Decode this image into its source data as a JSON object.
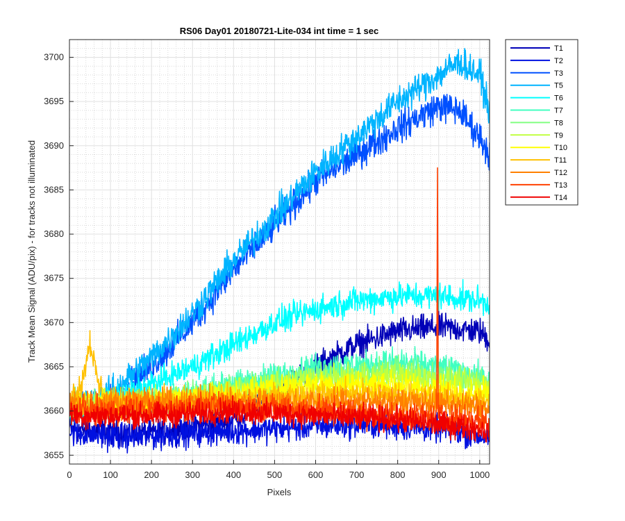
{
  "chart_data": {
    "type": "line",
    "title": "RS06 Day01 20180721-Lite-034 int time = 1 sec",
    "xlabel": "Pixels",
    "ylabel": "Track Mean Signal (ADU/pix) - for tracks not illuminated",
    "xlim": [
      0,
      1024
    ],
    "ylim": [
      3654,
      3702
    ],
    "x_ticks": [
      0,
      100,
      200,
      300,
      400,
      500,
      600,
      700,
      800,
      900,
      1000
    ],
    "y_ticks": [
      3655,
      3660,
      3665,
      3670,
      3675,
      3680,
      3685,
      3690,
      3695,
      3700
    ],
    "grid": "major and minor",
    "legend_position": "outside-top-right",
    "series": [
      {
        "name": "T1",
        "color": "#0000b8",
        "noise": 1.3,
        "anchors": [
          [
            0,
            3658
          ],
          [
            200,
            3657.5
          ],
          [
            400,
            3659
          ],
          [
            500,
            3662
          ],
          [
            600,
            3665
          ],
          [
            700,
            3667.5
          ],
          [
            800,
            3669
          ],
          [
            900,
            3669.5
          ],
          [
            1000,
            3669
          ],
          [
            1024,
            3668
          ]
        ]
      },
      {
        "name": "T2",
        "color": "#0010e0",
        "noise": 1.3,
        "anchors": [
          [
            0,
            3657.5
          ],
          [
            150,
            3657
          ],
          [
            300,
            3657.5
          ],
          [
            500,
            3658
          ],
          [
            700,
            3658.5
          ],
          [
            900,
            3658
          ],
          [
            1024,
            3657
          ]
        ]
      },
      {
        "name": "T3",
        "color": "#0050ff",
        "noise": 1.5,
        "anchors": [
          [
            0,
            3660
          ],
          [
            100,
            3661
          ],
          [
            200,
            3665
          ],
          [
            300,
            3670
          ],
          [
            400,
            3676
          ],
          [
            500,
            3681
          ],
          [
            600,
            3686
          ],
          [
            700,
            3689
          ],
          [
            800,
            3692
          ],
          [
            900,
            3694.5
          ],
          [
            950,
            3694
          ],
          [
            1000,
            3691
          ],
          [
            1024,
            3689
          ]
        ]
      },
      {
        "name": "T5",
        "color": "#00b4ff",
        "noise": 1.5,
        "anchors": [
          [
            0,
            3660
          ],
          [
            100,
            3662
          ],
          [
            200,
            3666
          ],
          [
            300,
            3671
          ],
          [
            400,
            3677
          ],
          [
            500,
            3682
          ],
          [
            600,
            3687
          ],
          [
            700,
            3691
          ],
          [
            800,
            3695
          ],
          [
            900,
            3698
          ],
          [
            950,
            3699.5
          ],
          [
            1000,
            3698
          ],
          [
            1024,
            3694
          ]
        ]
      },
      {
        "name": "T6",
        "color": "#00ffff",
        "noise": 1.3,
        "anchors": [
          [
            0,
            3660
          ],
          [
            100,
            3661
          ],
          [
            200,
            3663
          ],
          [
            300,
            3665
          ],
          [
            400,
            3667.5
          ],
          [
            500,
            3670
          ],
          [
            600,
            3671.5
          ],
          [
            700,
            3672.5
          ],
          [
            800,
            3673
          ],
          [
            900,
            3673
          ],
          [
            1000,
            3672.5
          ],
          [
            1024,
            3672
          ]
        ]
      },
      {
        "name": "T7",
        "color": "#40ffc0",
        "noise": 1.3,
        "anchors": [
          [
            0,
            3660.5
          ],
          [
            200,
            3661
          ],
          [
            400,
            3663
          ],
          [
            600,
            3665
          ],
          [
            800,
            3665.5
          ],
          [
            900,
            3665
          ],
          [
            1000,
            3664
          ],
          [
            1024,
            3663
          ]
        ]
      },
      {
        "name": "T8",
        "color": "#80ff80",
        "noise": 1.3,
        "anchors": [
          [
            0,
            3660.5
          ],
          [
            200,
            3661
          ],
          [
            400,
            3662.5
          ],
          [
            600,
            3664
          ],
          [
            800,
            3664.5
          ],
          [
            1000,
            3663.5
          ],
          [
            1024,
            3663
          ]
        ]
      },
      {
        "name": "T9",
        "color": "#c0ff40",
        "noise": 1.3,
        "anchors": [
          [
            0,
            3660.5
          ],
          [
            200,
            3661
          ],
          [
            400,
            3662
          ],
          [
            600,
            3663.5
          ],
          [
            800,
            3664
          ],
          [
            1000,
            3663
          ],
          [
            1024,
            3662.5
          ]
        ]
      },
      {
        "name": "T10",
        "color": "#ffff00",
        "noise": 1.3,
        "anchors": [
          [
            0,
            3661
          ],
          [
            200,
            3661
          ],
          [
            400,
            3662
          ],
          [
            600,
            3663
          ],
          [
            800,
            3663
          ],
          [
            1000,
            3662
          ],
          [
            1024,
            3662
          ]
        ]
      },
      {
        "name": "T11",
        "color": "#ffc000",
        "noise": 1.3,
        "anchors": [
          [
            0,
            3661.5
          ],
          [
            30,
            3663
          ],
          [
            50,
            3668
          ],
          [
            70,
            3663
          ],
          [
            100,
            3661
          ],
          [
            300,
            3661
          ],
          [
            500,
            3661.5
          ],
          [
            700,
            3662
          ],
          [
            900,
            3661.5
          ],
          [
            1024,
            3661
          ]
        ]
      },
      {
        "name": "T12",
        "color": "#ff8000",
        "noise": 1.3,
        "anchors": [
          [
            0,
            3661
          ],
          [
            200,
            3661
          ],
          [
            400,
            3661
          ],
          [
            600,
            3661
          ],
          [
            800,
            3661
          ],
          [
            1000,
            3660.5
          ],
          [
            1024,
            3660
          ]
        ]
      },
      {
        "name": "T13",
        "color": "#ff4000",
        "noise": 1.3,
        "anchors": [
          [
            0,
            3660
          ],
          [
            200,
            3660
          ],
          [
            400,
            3660.5
          ],
          [
            600,
            3660
          ],
          [
            800,
            3659.5
          ],
          [
            1000,
            3659
          ],
          [
            1024,
            3658.5
          ]
        ],
        "spike": [
          897,
          3687.5
        ]
      },
      {
        "name": "T14",
        "color": "#f00000",
        "noise": 1.2,
        "anchors": [
          [
            0,
            3659.5
          ],
          [
            200,
            3659.5
          ],
          [
            400,
            3660
          ],
          [
            600,
            3659.5
          ],
          [
            800,
            3659
          ],
          [
            1000,
            3658
          ],
          [
            1024,
            3657.5
          ]
        ]
      }
    ]
  }
}
